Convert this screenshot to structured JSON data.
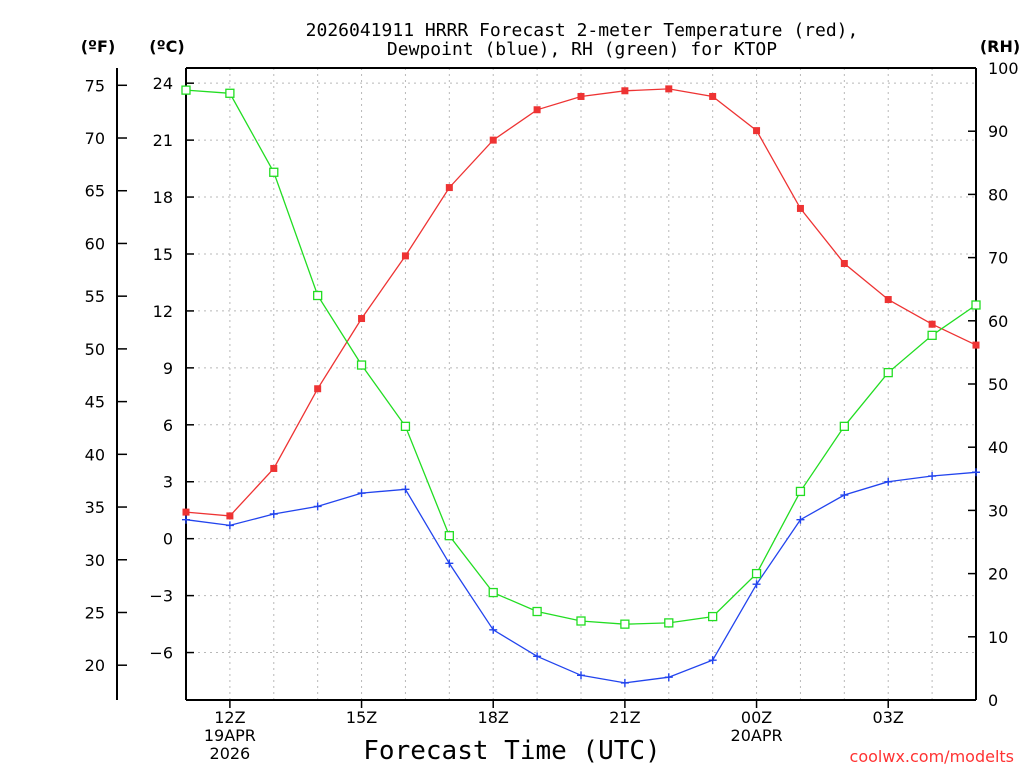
{
  "chart_data": {
    "type": "line",
    "title": "2026041911 HRRR Forecast 2-meter Temperature (red), Dewpoint (blue), RH (green) for KTOP",
    "title_line1": "2026041911 HRRR Forecast 2-meter Temperature (red),",
    "title_line2": "Dewpoint (blue), RH (green) for KTOP",
    "xlabel": "Forecast Time (UTC)",
    "credit": "coolwx.com/modelts",
    "unit_labels": {
      "f": "(ºF)",
      "c": "(ºC)",
      "rh": "(RH)"
    },
    "x_hours": [
      11,
      12,
      13,
      14,
      15,
      16,
      17,
      18,
      19,
      20,
      21,
      22,
      23,
      24,
      25,
      26,
      27,
      28,
      29
    ],
    "x_range": [
      11,
      29
    ],
    "x_ticks": [
      {
        "hour": 12,
        "label": "12Z",
        "sub1": "19APR",
        "sub2": "2026"
      },
      {
        "hour": 15,
        "label": "15Z",
        "sub1": "",
        "sub2": ""
      },
      {
        "hour": 18,
        "label": "18Z",
        "sub1": "",
        "sub2": ""
      },
      {
        "hour": 21,
        "label": "21Z",
        "sub1": "",
        "sub2": ""
      },
      {
        "hour": 24,
        "label": "00Z",
        "sub1": "20APR",
        "sub2": ""
      },
      {
        "hour": 27,
        "label": "03Z",
        "sub1": "",
        "sub2": ""
      }
    ],
    "ylim_c": [
      -8.5,
      24.8
    ],
    "y_ticks_c": [
      -6,
      -3,
      0,
      3,
      6,
      9,
      12,
      15,
      18,
      21,
      24
    ],
    "y_ticks_f": [
      20,
      25,
      30,
      35,
      40,
      45,
      50,
      55,
      60,
      65,
      70,
      75
    ],
    "y_ticks_rh": [
      0,
      10,
      20,
      30,
      40,
      50,
      60,
      70,
      80,
      90,
      100
    ],
    "rh_range": [
      0,
      100
    ],
    "series": [
      {
        "name": "Temperature",
        "unit": "C",
        "color": "#ee3333",
        "marker": "filled-square",
        "values": [
          1.4,
          1.2,
          3.7,
          7.9,
          11.6,
          14.9,
          18.5,
          21.0,
          22.6,
          23.3,
          23.6,
          23.7,
          23.3,
          21.5,
          17.4,
          14.5,
          12.6,
          11.3,
          10.2
        ]
      },
      {
        "name": "Dewpoint",
        "unit": "C",
        "color": "#2244ee",
        "marker": "plus",
        "values": [
          1.0,
          0.7,
          1.3,
          1.7,
          2.4,
          2.6,
          -1.3,
          -4.8,
          -6.2,
          -7.2,
          -7.6,
          -7.3,
          -6.4,
          -2.4,
          1.0,
          2.3,
          3.0,
          3.3,
          3.5
        ]
      },
      {
        "name": "RH",
        "unit": "%",
        "color": "#22dd22",
        "marker": "open-square",
        "values": [
          96.5,
          96.0,
          83.5,
          64.0,
          53.0,
          43.3,
          26.0,
          17.0,
          14.0,
          12.5,
          12.0,
          12.2,
          13.2,
          20.0,
          33.0,
          43.3,
          51.8,
          57.7,
          62.5
        ]
      }
    ]
  }
}
